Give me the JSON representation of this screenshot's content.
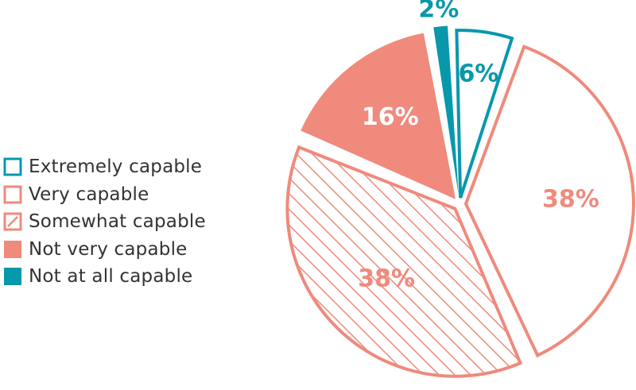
{
  "chart_data": {
    "type": "pie",
    "categories": [
      "Extremely capable",
      "Very capable",
      "Somewhat capable",
      "Not very capable",
      "Not at all capable"
    ],
    "values": [
      6,
      38,
      38,
      16,
      2
    ],
    "data_labels": [
      "6%",
      "38%",
      "38%",
      "16%",
      "2%"
    ],
    "styles": [
      "outline",
      "outline",
      "hatched",
      "solid",
      "solid"
    ],
    "colors": [
      "#0898ab",
      "#ef8a7c",
      "#ef8a7c",
      "#ef8a7c",
      "#0898ab"
    ],
    "legend_position": "left",
    "title": "",
    "units": "%"
  }
}
